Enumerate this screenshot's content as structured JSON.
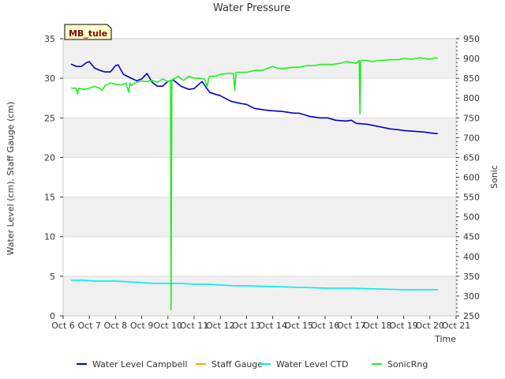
{
  "chart_data": {
    "type": "line",
    "title": "Water Pressure",
    "station_badge": "MB_tule",
    "xlabel": "Time",
    "ylabel_left": "Water Level (cm), Staff Gauge (cm)",
    "ylabel_right": "Sonic",
    "x_ticks": [
      "Oct 6",
      "Oct 7",
      "Oct 8",
      "Oct 9",
      "Oct 10",
      "Oct 11",
      "Oct 12",
      "Oct 13",
      "Oct 14",
      "Oct 15",
      "Oct 16",
      "Oct 17",
      "Oct 18",
      "Oct 19",
      "Oct 20",
      "Oct 21"
    ],
    "xlim": [
      6,
      21
    ],
    "ylim_left": [
      0,
      35
    ],
    "ylim_right": [
      250,
      950
    ],
    "y_ticks_left": [
      0,
      5,
      10,
      15,
      20,
      25,
      30,
      35
    ],
    "y_ticks_right": [
      250,
      300,
      350,
      400,
      450,
      500,
      550,
      600,
      650,
      700,
      750,
      800,
      850,
      900,
      950
    ],
    "grid": true,
    "legend_position": "bottom",
    "series": [
      {
        "name": "Water Level Campbell",
        "color": "#0000cc",
        "axis": "left",
        "x": [
          6.3,
          6.5,
          6.7,
          6.9,
          7.0,
          7.2,
          7.4,
          7.6,
          7.8,
          8.0,
          8.1,
          8.3,
          8.6,
          8.8,
          9.0,
          9.2,
          9.4,
          9.6,
          9.8,
          10.0,
          10.2,
          10.5,
          10.8,
          11.0,
          11.3,
          11.6,
          12.0,
          12.4,
          12.8,
          13.0,
          13.3,
          13.7,
          14.0,
          14.4,
          14.8,
          15.0,
          15.4,
          15.8,
          16.1,
          16.4,
          16.8,
          17.0,
          17.2,
          17.6,
          17.9,
          18.2,
          18.5,
          18.8,
          19.0,
          19.4,
          19.8,
          20.0,
          20.3
        ],
        "y": [
          31.8,
          31.5,
          31.5,
          32.0,
          32.1,
          31.3,
          31.0,
          30.8,
          30.8,
          31.6,
          31.7,
          30.5,
          30.0,
          29.7,
          29.9,
          30.6,
          29.5,
          29.0,
          29.0,
          29.6,
          29.8,
          29.0,
          28.6,
          28.7,
          29.6,
          28.2,
          27.8,
          27.1,
          26.8,
          26.7,
          26.2,
          26.0,
          25.9,
          25.8,
          25.6,
          25.6,
          25.2,
          25.0,
          25.0,
          24.7,
          24.6,
          24.7,
          24.3,
          24.2,
          24.0,
          23.8,
          23.6,
          23.5,
          23.4,
          23.3,
          23.2,
          23.1,
          23.0
        ]
      },
      {
        "name": "Staff Gauge",
        "color": "#ffa500",
        "axis": "left",
        "x": [],
        "y": []
      },
      {
        "name": "Water Level CTD",
        "color": "#00eeee",
        "axis": "left",
        "x": [
          6.3,
          6.8,
          7.2,
          7.6,
          8.0,
          8.5,
          9.0,
          9.5,
          10.0,
          10.5,
          11.0,
          11.5,
          12.0,
          12.5,
          13.0,
          14.0,
          15.0,
          16.0,
          17.0,
          18.0,
          19.0,
          20.0,
          20.3
        ],
        "y": [
          4.5,
          4.5,
          4.4,
          4.4,
          4.4,
          4.3,
          4.2,
          4.1,
          4.1,
          4.1,
          4.0,
          4.0,
          3.9,
          3.8,
          3.8,
          3.7,
          3.6,
          3.5,
          3.5,
          3.4,
          3.3,
          3.3,
          3.3
        ]
      },
      {
        "name": "SonicRng",
        "color": "#22ee22",
        "axis": "right",
        "x": [
          6.3,
          6.5,
          6.55,
          6.6,
          6.8,
          7.0,
          7.2,
          7.4,
          7.5,
          7.6,
          7.8,
          8.0,
          8.2,
          8.4,
          8.5,
          8.55,
          8.6,
          8.8,
          9.0,
          9.2,
          9.4,
          9.6,
          9.8,
          10.0,
          10.1,
          10.12,
          10.15,
          10.2,
          10.4,
          10.5,
          10.6,
          10.8,
          11.0,
          11.2,
          11.4,
          11.5,
          11.55,
          11.6,
          11.8,
          12.0,
          12.3,
          12.5,
          12.55,
          12.6,
          12.8,
          13.0,
          13.3,
          13.6,
          13.8,
          14.0,
          14.2,
          14.5,
          14.8,
          15.0,
          15.3,
          15.6,
          15.8,
          16.0,
          16.3,
          16.6,
          16.8,
          17.0,
          17.2,
          17.3,
          17.33,
          17.36,
          17.4,
          17.6,
          17.8,
          18.0,
          18.2,
          18.5,
          18.8,
          19.0,
          19.3,
          19.6,
          19.8,
          20.0,
          20.2,
          20.3
        ],
        "y": [
          825,
          825,
          810,
          825,
          822,
          825,
          830,
          825,
          820,
          832,
          838,
          835,
          833,
          838,
          815,
          838,
          832,
          840,
          843,
          842,
          845,
          840,
          848,
          842,
          845,
          265,
          845,
          848,
          855,
          848,
          845,
          855,
          850,
          850,
          848,
          830,
          848,
          855,
          855,
          860,
          862,
          862,
          820,
          865,
          865,
          865,
          870,
          870,
          875,
          880,
          875,
          875,
          878,
          878,
          882,
          882,
          885,
          885,
          885,
          888,
          892,
          890,
          888,
          895,
          760,
          895,
          895,
          895,
          892,
          895,
          895,
          897,
          897,
          900,
          898,
          902,
          900,
          898,
          902,
          900
        ]
      }
    ]
  }
}
